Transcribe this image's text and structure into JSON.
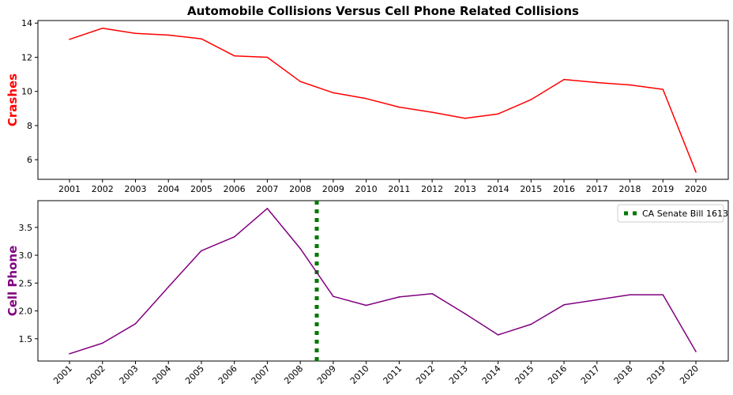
{
  "chart_data": [
    {
      "type": "line",
      "title": "Automobile Collisions Versus Cell Phone Related Collisions",
      "xlabel": "",
      "ylabel": "Crashes",
      "ylabel_color": "#ff0000",
      "x": [
        "2001",
        "2002",
        "2003",
        "2004",
        "2005",
        "2006",
        "2007",
        "2008",
        "2009",
        "2010",
        "2011",
        "2012",
        "2013",
        "2014",
        "2015",
        "2016",
        "2017",
        "2018",
        "2019",
        "2020"
      ],
      "series": [
        {
          "color": "#ff0000",
          "values": [
            13.05,
            13.7,
            13.4,
            13.3,
            13.08,
            12.08,
            12.0,
            10.58,
            9.92,
            9.58,
            9.08,
            8.78,
            8.42,
            8.68,
            9.52,
            10.7,
            10.52,
            10.38,
            10.12,
            5.28
          ]
        }
      ],
      "ylim": [
        4.85,
        14.15
      ],
      "yticks": [
        6,
        8,
        10,
        12,
        14
      ],
      "grid": false
    },
    {
      "type": "line",
      "title": "",
      "xlabel": "",
      "ylabel": "Cell Phone",
      "ylabel_color": "#800080",
      "x": [
        "2001",
        "2002",
        "2003",
        "2004",
        "2005",
        "2006",
        "2007",
        "2008",
        "2009",
        "2010",
        "2011",
        "2012",
        "2013",
        "2014",
        "2015",
        "2016",
        "2017",
        "2018",
        "2019",
        "2020"
      ],
      "series": [
        {
          "color": "#800080",
          "values": [
            1.23,
            1.42,
            1.77,
            2.43,
            3.08,
            3.33,
            3.84,
            3.12,
            2.26,
            2.1,
            2.25,
            2.31,
            1.95,
            1.57,
            1.76,
            2.11,
            2.2,
            2.29,
            2.29,
            1.27
          ]
        }
      ],
      "vline": {
        "x": 7.5,
        "label": "CA Senate Bill 1613",
        "color": "#007700"
      },
      "legend": {
        "placement": "top-right",
        "entries": [
          "CA Senate Bill 1613"
        ]
      },
      "ylim": [
        1.1,
        3.98
      ],
      "yticks": [
        1.5,
        2.0,
        2.5,
        3.0,
        3.5
      ],
      "ytick_labels": [
        "1.5",
        "2.0",
        "2.5",
        "3.0",
        "3.5"
      ],
      "grid": false
    }
  ]
}
